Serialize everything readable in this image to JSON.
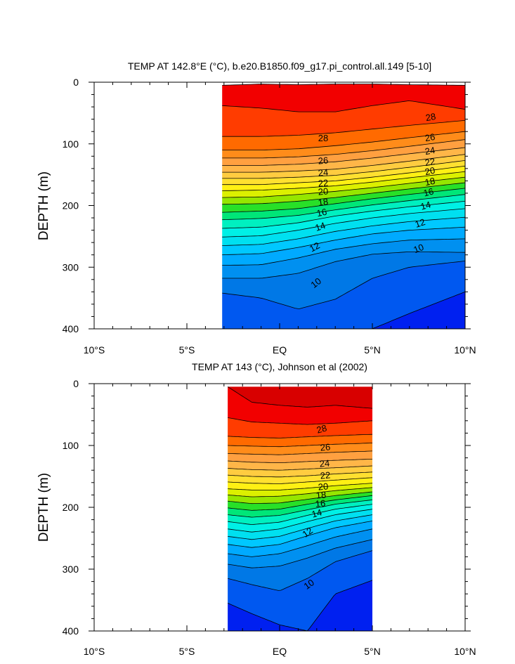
{
  "chart_data": [
    {
      "type": "heatmap",
      "title": "TEMP AT 142.8°E (°C), b.e20.B1850.f09_g17.pi_control.all.149 [5-10]",
      "xlabel": "",
      "ylabel": "DEPTH (m)",
      "x_range": [
        -10,
        10
      ],
      "y_range": [
        0,
        400
      ],
      "y_reversed": true,
      "data_x_range": [
        -3.1,
        10
      ],
      "x_ticks": [
        -10,
        -5,
        0,
        5,
        10
      ],
      "x_tick_labels": [
        "10°S",
        "5°S",
        "EQ",
        "5°N",
        "10°N"
      ],
      "y_ticks": [
        0,
        100,
        200,
        300,
        400
      ],
      "y_tick_labels": [
        "0",
        "100",
        "200",
        "300",
        "400"
      ],
      "contour_interval": 1,
      "isotherm_depths": {
        "x": [
          -3.1,
          -1,
          1,
          3,
          5,
          7,
          10
        ],
        "levels": [
          {
            "t": 29,
            "d": [
              5,
              3,
              4,
              3,
              3,
              4,
              5
            ]
          },
          {
            "t": 28,
            "d": [
              38,
              42,
              48,
              48,
              38,
              30,
              44
            ]
          },
          {
            "t": 27,
            "d": [
              88,
              88,
              86,
              82,
              76,
              70,
              62
            ]
          },
          {
            "t": 26,
            "d": [
              110,
              110,
              108,
              103,
              97,
              90,
              80
            ]
          },
          {
            "t": 25,
            "d": [
              123,
              123,
              121,
              117,
              111,
              104,
              93
            ]
          },
          {
            "t": 24,
            "d": [
              135,
              135,
              133,
              129,
              123,
              116,
              106
            ]
          },
          {
            "t": 23,
            "d": [
              146,
              146,
              144,
              141,
              135,
              128,
              117
            ]
          },
          {
            "t": 22,
            "d": [
              156,
              156,
              154,
              151,
              145,
              138,
              127
            ]
          },
          {
            "t": 21,
            "d": [
              166,
              166,
              163,
              160,
              154,
              147,
              136
            ]
          },
          {
            "t": 20,
            "d": [
              176,
              175,
              172,
              168,
              162,
              155,
              145
            ]
          },
          {
            "t": 19,
            "d": [
              187,
              186,
              182,
              177,
              171,
              164,
              154
            ]
          },
          {
            "t": 18,
            "d": [
              198,
              197,
              193,
              187,
              180,
              173,
              163
            ]
          },
          {
            "t": 17,
            "d": [
              211,
              209,
              205,
              197,
              189,
              182,
              172
            ]
          },
          {
            "t": 16,
            "d": [
              223,
              221,
              216,
              207,
              199,
              192,
              182
            ]
          },
          {
            "t": 15,
            "d": [
              237,
              235,
              228,
              217,
              209,
              202,
              193
            ]
          },
          {
            "t": 14,
            "d": [
              251,
              249,
              240,
              229,
              220,
              213,
              205
            ]
          },
          {
            "t": 13,
            "d": [
              265,
              263,
              254,
              242,
              233,
              226,
              219
            ]
          },
          {
            "t": 12,
            "d": [
              280,
              278,
              268,
              256,
              246,
              240,
              235
            ]
          },
          {
            "t": 11,
            "d": [
              297,
              296,
              285,
              271,
              262,
              256,
              254
            ]
          },
          {
            "t": 10,
            "d": [
              318,
              318,
              310,
              291,
              279,
              275,
              276
            ]
          },
          {
            "t": 9,
            "d": [
              342,
              350,
              368,
              352,
              318,
              300,
              290
            ]
          },
          {
            "t": 8,
            "d": [
              400,
              400,
              400,
              400,
              400,
              375,
              340
            ]
          }
        ]
      },
      "contour_labels": [
        "28",
        "26",
        "24",
        "22",
        "20",
        "18",
        "16",
        "14",
        "12",
        "10"
      ]
    },
    {
      "type": "heatmap",
      "title": "TEMP AT 143 (°C), Johnson et al (2002)",
      "xlabel": "",
      "ylabel": "DEPTH (m)",
      "x_range": [
        -10,
        10
      ],
      "y_range": [
        0,
        400
      ],
      "y_reversed": true,
      "data_x_range": [
        -2.8,
        5
      ],
      "x_ticks": [
        -10,
        -5,
        0,
        5,
        10
      ],
      "x_tick_labels": [
        "10°S",
        "5°S",
        "EQ",
        "5°N",
        "10°N"
      ],
      "y_ticks": [
        0,
        100,
        200,
        300,
        400
      ],
      "y_tick_labels": [
        "0",
        "100",
        "200",
        "300",
        "400"
      ],
      "contour_interval": 1,
      "isotherm_depths": {
        "x": [
          -2.8,
          -1.5,
          0,
          1.5,
          3,
          5
        ],
        "levels": [
          {
            "t": 29,
            "d": [
              5,
              30,
              35,
              38,
              35,
              40
            ]
          },
          {
            "t": 28,
            "d": [
              55,
              62,
              64,
              66,
              64,
              60
            ]
          },
          {
            "t": 27,
            "d": [
              85,
              87,
              88,
              86,
              84,
              82
            ]
          },
          {
            "t": 26,
            "d": [
              100,
              101,
              102,
              100,
              98,
              96
            ]
          },
          {
            "t": 25,
            "d": [
              113,
              114,
              115,
              113,
              111,
              109
            ]
          },
          {
            "t": 24,
            "d": [
              125,
              127,
              128,
              126,
              124,
              122
            ]
          },
          {
            "t": 23,
            "d": [
              137,
              139,
              140,
              138,
              136,
              133
            ]
          },
          {
            "t": 22,
            "d": [
              148,
              150,
              151,
              149,
              146,
              143
            ]
          },
          {
            "t": 21,
            "d": [
              159,
              161,
              162,
              159,
              156,
              152
            ]
          },
          {
            "t": 20,
            "d": [
              170,
              172,
              172,
              169,
              165,
              161
            ]
          },
          {
            "t": 19,
            "d": [
              180,
              183,
              182,
              178,
              173,
              168
            ]
          },
          {
            "t": 18,
            "d": [
              190,
              194,
              193,
              187,
              181,
              175
            ]
          },
          {
            "t": 17,
            "d": [
              201,
              205,
              203,
              195,
              188,
              181
            ]
          },
          {
            "t": 16,
            "d": [
              212,
              216,
              213,
              204,
              195,
              188
            ]
          },
          {
            "t": 15,
            "d": [
              223,
              228,
              224,
              213,
              203,
              195
            ]
          },
          {
            "t": 14,
            "d": [
              235,
              240,
              235,
              223,
              212,
              203
            ]
          },
          {
            "t": 13,
            "d": [
              247,
              252,
              247,
              234,
              222,
              212
            ]
          },
          {
            "t": 12,
            "d": [
              260,
              265,
              260,
              246,
              233,
              222
            ]
          },
          {
            "t": 11,
            "d": [
              275,
              280,
              275,
              262,
              248,
              235
            ]
          },
          {
            "t": 10,
            "d": [
              292,
              298,
              295,
              282,
              266,
              252
            ]
          },
          {
            "t": 9,
            "d": [
              315,
              325,
              335,
              315,
              288,
              270
            ]
          },
          {
            "t": 8,
            "d": [
              355,
              372,
              390,
              400,
              340,
              318
            ]
          },
          {
            "t": 7,
            "d": [
              400,
              400,
              400,
              400,
              400,
              400
            ]
          }
        ]
      },
      "contour_labels": [
        "28",
        "26",
        "24",
        "22",
        "20",
        "18",
        "16",
        "14",
        "12",
        "10"
      ]
    }
  ],
  "palette": {
    "t30": "#d80000",
    "t29": "#f20000",
    "t28": "#ff3c00",
    "t27": "#ff6a00",
    "t26": "#ff8c1a",
    "t25": "#ffa040",
    "t24": "#ffb648",
    "t23": "#ffcc40",
    "t22": "#ffe030",
    "t21": "#fff014",
    "t20": "#dcf000",
    "t19": "#96e600",
    "t18": "#28e028",
    "t17": "#00e678",
    "t16": "#00f0c0",
    "t15": "#00f0e6",
    "t14": "#00e0f0",
    "t13": "#00c8ff",
    "t12": "#00aaff",
    "t11": "#0090f0",
    "t10": "#0078e6",
    "t9": "#0058f0",
    "t8": "#0020f0",
    "t7": "#5a1edc"
  }
}
